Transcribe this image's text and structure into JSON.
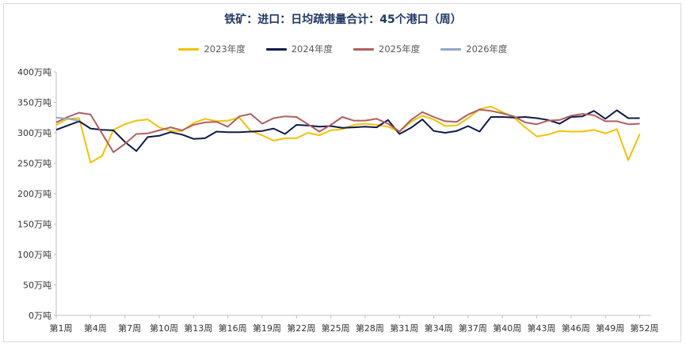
{
  "chart_data": {
    "type": "line",
    "title": "铁矿：进口：日均疏港量合计：45个港口（周）",
    "xlabel": "",
    "ylabel": "",
    "ylim": [
      0,
      400
    ],
    "yticks": [
      "0万吨",
      "50万吨",
      "100万吨",
      "150万吨",
      "200万吨",
      "250万吨",
      "300万吨",
      "350万吨",
      "400万吨"
    ],
    "ytick_values": [
      0,
      50,
      100,
      150,
      200,
      250,
      300,
      350,
      400
    ],
    "x_tick_labels": [
      "第1周",
      "第4周",
      "第7周",
      "第10周",
      "第13周",
      "第16周",
      "第19周",
      "第22周",
      "第25周",
      "第28周",
      "第31周",
      "第34周",
      "第37周",
      "第40周",
      "第43周",
      "第46周",
      "第49周",
      "第52周"
    ],
    "x_tick_weeks": [
      1,
      4,
      7,
      10,
      13,
      16,
      19,
      22,
      25,
      28,
      31,
      34,
      37,
      40,
      43,
      46,
      49,
      52
    ],
    "x_range": [
      1,
      53
    ],
    "grid": false,
    "legend_position": "top",
    "series": [
      {
        "name": "2023年度",
        "color": "#f2c200",
        "values": [
          313,
          323,
          324,
          251,
          262,
          305,
          314,
          320,
          322,
          309,
          303,
          303,
          316,
          323,
          319,
          320,
          325,
          303,
          296,
          287,
          291,
          291,
          300,
          296,
          304,
          306,
          313,
          315,
          313,
          310,
          302,
          318,
          328,
          322,
          311,
          312,
          324,
          339,
          343,
          334,
          325,
          309,
          294,
          297,
          303,
          302,
          302,
          305,
          299,
          306,
          255,
          298
        ]
      },
      {
        "name": "2024年度",
        "color": "#0d1b4b",
        "values": [
          305,
          312,
          319,
          307,
          305,
          304,
          285,
          270,
          293,
          295,
          301,
          297,
          290,
          291,
          302,
          301,
          301,
          302,
          303,
          307,
          298,
          313,
          312,
          310,
          311,
          308,
          309,
          310,
          309,
          321,
          298,
          308,
          322,
          303,
          300,
          303,
          311,
          302,
          326,
          326,
          325,
          326,
          324,
          321,
          315,
          326,
          327,
          336,
          323,
          337,
          324,
          324
        ]
      },
      {
        "name": "2025年度",
        "color": "#b05f5f",
        "values": [
          317,
          326,
          333,
          330,
          299,
          268,
          282,
          298,
          299,
          304,
          309,
          304,
          313,
          317,
          318,
          310,
          327,
          331,
          315,
          324,
          327,
          326,
          314,
          302,
          313,
          326,
          320,
          320,
          323,
          315,
          302,
          321,
          334,
          326,
          319,
          318,
          330,
          338,
          336,
          332,
          327,
          317,
          314,
          320,
          321,
          328,
          331,
          329,
          319,
          319,
          314,
          315
        ]
      },
      {
        "name": "2026年度",
        "color": "#8ea8c8",
        "values": [
          325,
          323,
          320
        ]
      }
    ]
  }
}
